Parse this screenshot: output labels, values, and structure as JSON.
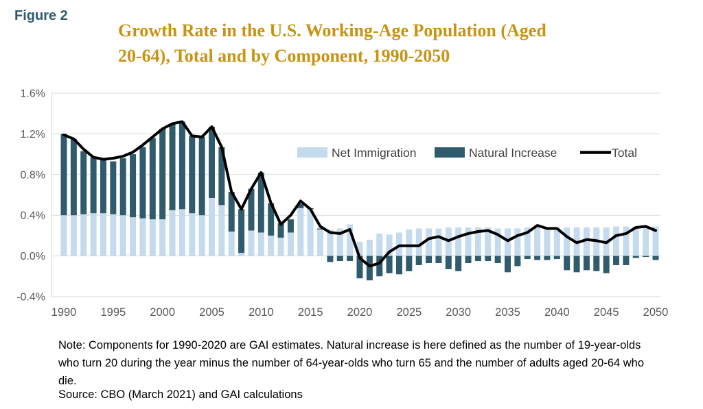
{
  "figure_label": "Figure 2",
  "title_line1": "Growth Rate in the U.S. Working-Age Population (Aged",
  "title_line2": "20-64), Total and by Component, 1990-2050",
  "note_text": "Note: Components for 1990-2020 are GAI estimates. Natural increase is here defined as the number of  19-year-olds who turn 20 during the year minus the number of 64-year-olds who turn 65 and the number of adults aged 20-64 who die.",
  "source_text": "Source: CBO (March 2021) and GAI calculations",
  "colors": {
    "net_immigration_bar": "#C4DAEE",
    "natural_increase_bar": "#2F5B6C",
    "total_line": "#000000",
    "title_text": "#C8930F",
    "figure_label_text": "#2E5B6D",
    "axis_text": "#595959",
    "legend_text": "#404040",
    "gridline": "#D9D9D9"
  },
  "chart_data": {
    "type": "bar",
    "subtype": "stacked-bars-with-total-line",
    "title": "Growth Rate in the U.S. Working-Age Population (Aged 20-64), Total and by Component, 1990-2050",
    "xlabel": "",
    "ylabel": "",
    "unit": "percent",
    "grid": true,
    "legend_position": "inside-top-right",
    "ylim": [
      -0.4,
      1.6
    ],
    "y_tick_labels": [
      "1.6%",
      "1.2%",
      "0.8%",
      "0.4%",
      "0.0%",
      "-0.4%"
    ],
    "y_tick_values": [
      1.6,
      1.2,
      0.8,
      0.4,
      0.0,
      -0.4
    ],
    "x_tick_labels": [
      "1990",
      "1995",
      "2000",
      "2005",
      "2010",
      "2015",
      "2020",
      "2025",
      "2030",
      "2035",
      "2040",
      "2045",
      "2050"
    ],
    "x": [
      1990,
      1991,
      1992,
      1993,
      1994,
      1995,
      1996,
      1997,
      1998,
      1999,
      2000,
      2001,
      2002,
      2003,
      2004,
      2005,
      2006,
      2007,
      2008,
      2009,
      2010,
      2011,
      2012,
      2013,
      2014,
      2015,
      2016,
      2017,
      2018,
      2019,
      2020,
      2021,
      2022,
      2023,
      2024,
      2025,
      2026,
      2027,
      2028,
      2029,
      2030,
      2031,
      2032,
      2033,
      2034,
      2035,
      2036,
      2037,
      2038,
      2039,
      2040,
      2041,
      2042,
      2043,
      2044,
      2045,
      2046,
      2047,
      2048,
      2049,
      2050
    ],
    "series": [
      {
        "name": "Net Immigration",
        "type": "bar",
        "color": "#C4DAEE",
        "values": [
          0.4,
          0.4,
          0.41,
          0.42,
          0.42,
          0.41,
          0.4,
          0.38,
          0.37,
          0.36,
          0.36,
          0.45,
          0.46,
          0.42,
          0.4,
          0.57,
          0.5,
          0.24,
          0.03,
          0.25,
          0.23,
          0.2,
          0.18,
          0.23,
          0.47,
          0.46,
          0.26,
          0.26,
          0.27,
          0.31,
          0.14,
          0.16,
          0.22,
          0.21,
          0.23,
          0.26,
          0.27,
          0.27,
          0.27,
          0.28,
          0.28,
          0.28,
          0.28,
          0.28,
          0.27,
          0.27,
          0.27,
          0.28,
          0.28,
          0.28,
          0.28,
          0.28,
          0.28,
          0.28,
          0.28,
          0.28,
          0.29,
          0.29,
          0.29,
          0.29,
          0.29
        ]
      },
      {
        "name": "Natural Increase",
        "type": "bar",
        "color": "#2F5B6C",
        "values": [
          0.8,
          0.75,
          0.62,
          0.55,
          0.52,
          0.52,
          0.56,
          0.62,
          0.7,
          0.8,
          0.89,
          0.85,
          0.86,
          0.76,
          0.77,
          0.7,
          0.57,
          0.39,
          0.43,
          0.41,
          0.59,
          0.32,
          0.14,
          0.13,
          0.04,
          0.01,
          0.01,
          -0.06,
          -0.05,
          -0.05,
          -0.22,
          -0.24,
          -0.2,
          -0.17,
          -0.18,
          -0.15,
          -0.09,
          -0.07,
          -0.07,
          -0.13,
          -0.15,
          -0.07,
          -0.05,
          -0.05,
          -0.07,
          -0.16,
          -0.1,
          -0.03,
          -0.04,
          -0.04,
          -0.03,
          -0.14,
          -0.16,
          -0.14,
          -0.15,
          -0.17,
          -0.09,
          -0.09,
          -0.02,
          -0.01,
          -0.04
        ]
      },
      {
        "name": "Total",
        "type": "line",
        "color": "#000000",
        "values": [
          1.19,
          1.15,
          1.05,
          0.97,
          0.95,
          0.96,
          0.98,
          1.02,
          1.09,
          1.17,
          1.25,
          1.3,
          1.32,
          1.18,
          1.17,
          1.27,
          1.07,
          0.63,
          0.46,
          0.66,
          0.82,
          0.52,
          0.31,
          0.4,
          0.54,
          0.46,
          0.29,
          0.23,
          0.22,
          0.26,
          -0.02,
          -0.1,
          -0.07,
          0.04,
          0.1,
          0.1,
          0.1,
          0.17,
          0.19,
          0.15,
          0.19,
          0.22,
          0.24,
          0.25,
          0.21,
          0.15,
          0.2,
          0.23,
          0.3,
          0.27,
          0.27,
          0.19,
          0.13,
          0.16,
          0.15,
          0.13,
          0.2,
          0.22,
          0.28,
          0.29,
          0.25
        ]
      }
    ]
  }
}
